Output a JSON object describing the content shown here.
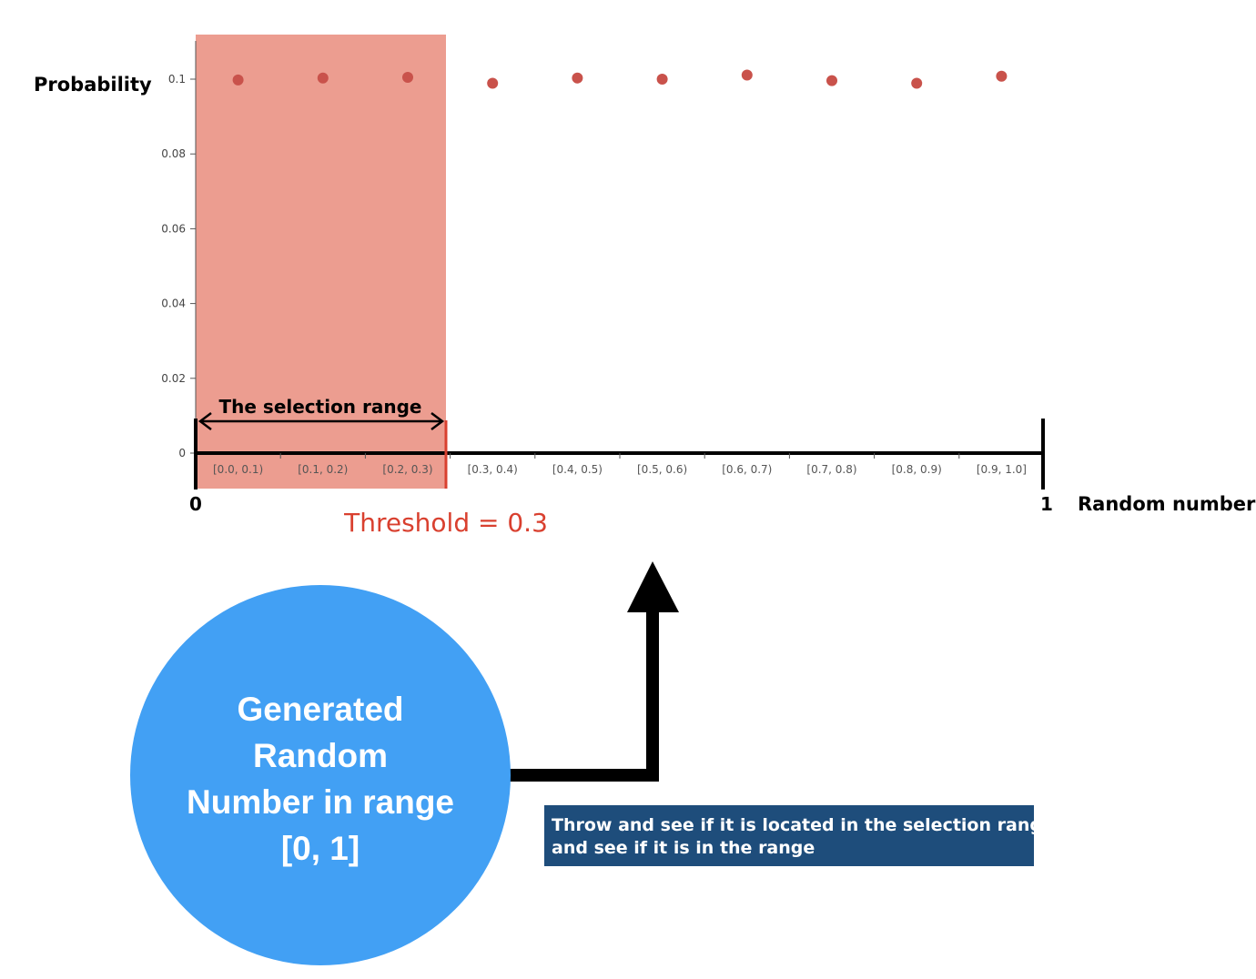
{
  "labels": {
    "y_axis_title": "Probability",
    "x_axis_title": "Random number",
    "x_start": "0",
    "x_end": "1",
    "selection_range": "The selection range",
    "threshold": "Threshold = 0.3"
  },
  "circle": {
    "lines": [
      "Generated",
      "Random",
      "Number in range",
      "[0, 1]"
    ]
  },
  "note": {
    "lines": [
      "Throw and see if it is located in the selection range",
      "and see if it is in the range"
    ]
  },
  "colors": {
    "selection_fill": "#ec9d90",
    "dot": "#c9524b",
    "threshold": "#d9402f",
    "circle": "#42a0f4",
    "note_bg": "#1e4d7b"
  },
  "chart_data": {
    "type": "scatter",
    "categories": [
      "[0.0, 0.1)",
      "[0.1, 0.2)",
      "[0.2, 0.3)",
      "[0.3, 0.4)",
      "[0.4, 0.5)",
      "[0.5, 0.6)",
      "[0.6, 0.7)",
      "[0.7, 0.8)",
      "[0.8, 0.9)",
      "[0.9, 1.0]"
    ],
    "values": [
      0.0998,
      0.1003,
      0.1005,
      0.0989,
      0.1003,
      0.1,
      0.1011,
      0.0996,
      0.0989,
      0.1008
    ],
    "yticks": [
      "0",
      "0.02",
      "0.04",
      "0.06",
      "0.08",
      "0.1"
    ],
    "ylim": [
      0,
      0.1
    ],
    "threshold": 0.3,
    "selection_range": [
      0,
      0.3
    ]
  }
}
